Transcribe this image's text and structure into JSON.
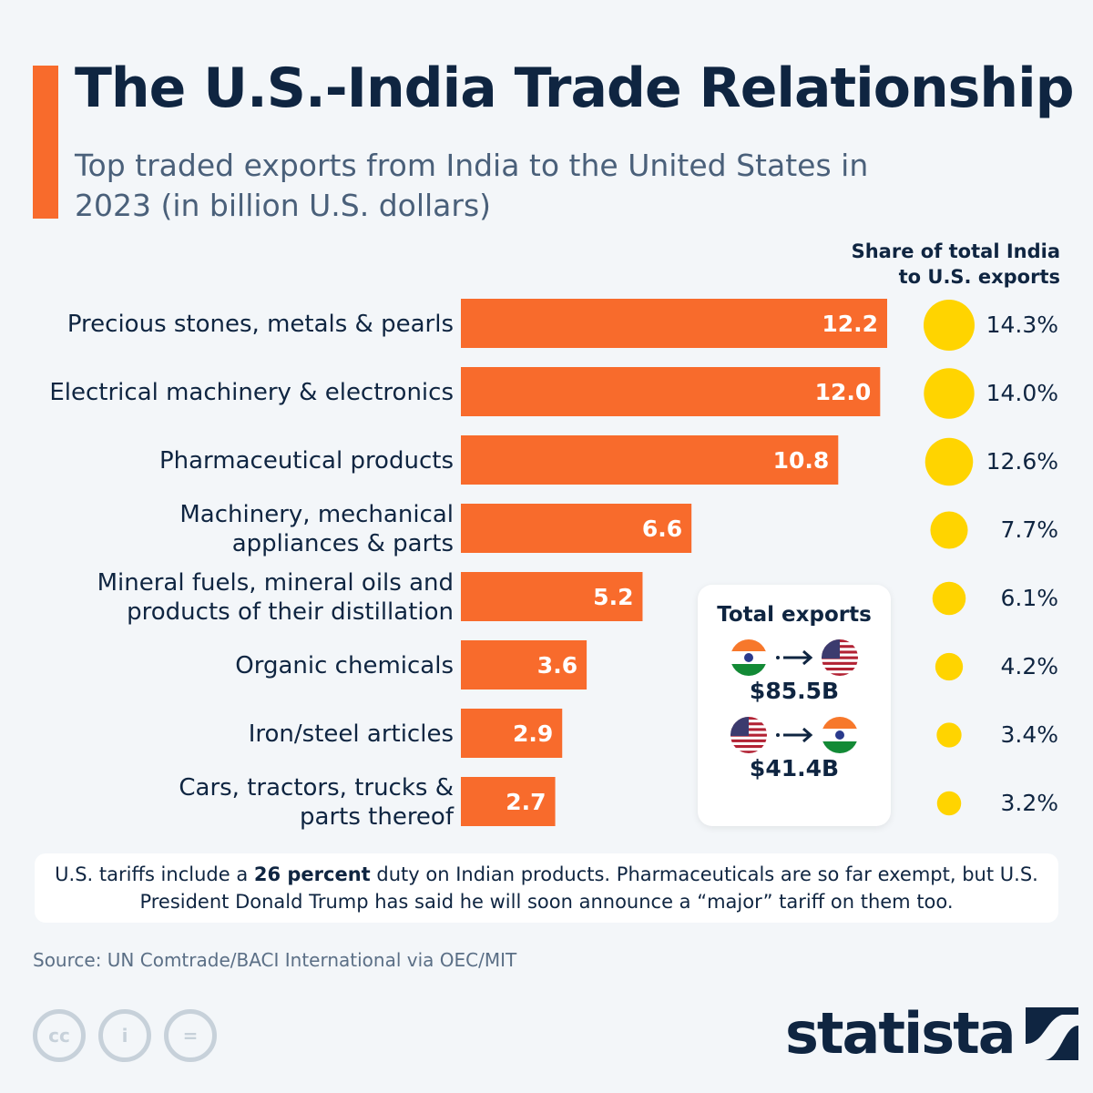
{
  "title": "The U.S.-India Trade Relationship",
  "subtitle": "Top traded exports from India to the United States in 2023 (in billion U.S. dollars)",
  "share_header_line1": "Share of total India",
  "share_header_line2": "to U.S. exports",
  "chart_data": {
    "type": "bar",
    "orientation": "horizontal",
    "categories": [
      [
        "Precious stones, metals & pearls"
      ],
      [
        "Electrical machinery & electronics"
      ],
      [
        "Pharmaceutical products"
      ],
      [
        "Machinery, mechanical",
        "appliances & parts"
      ],
      [
        "Mineral fuels, mineral oils and",
        "products of their distillation"
      ],
      [
        "Organic chemicals"
      ],
      [
        "Iron/steel articles"
      ],
      [
        "Cars, tractors, trucks &",
        "parts thereof"
      ]
    ],
    "values": [
      12.2,
      12.0,
      10.8,
      6.6,
      5.2,
      3.6,
      2.9,
      2.7
    ],
    "value_labels": [
      "12.2",
      "12.0",
      "10.8",
      "6.6",
      "5.2",
      "3.6",
      "2.9",
      "2.7"
    ],
    "share_percent": [
      14.3,
      14.0,
      12.6,
      7.7,
      6.1,
      4.2,
      3.4,
      3.2
    ],
    "share_labels": [
      "14.3%",
      "14.0%",
      "12.6%",
      "7.7%",
      "6.1%",
      "4.2%",
      "3.4%",
      "3.2%"
    ],
    "bar_color": "#f86b2c",
    "bubble_color": "#ffd400"
  },
  "total_box": {
    "heading": "Total exports",
    "india_to_us": "$85.5B",
    "us_to_india": "$41.4B"
  },
  "note": {
    "before": "U.S. tariffs include a ",
    "bold": "26 percent",
    "after": " duty on Indian products. Pharmaceuticals are so far exempt, but U.S. President Donald Trump has said he will soon announce a “major” tariff on them too."
  },
  "source": "Source: UN Comtrade/BACI International via OEC/MIT",
  "license_icons": [
    "cc-icon",
    "by-icon",
    "nd-icon"
  ],
  "logo": "statista"
}
